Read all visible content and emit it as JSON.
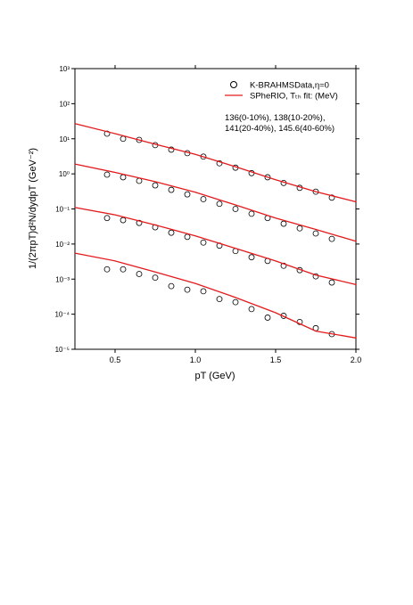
{
  "chart_data": {
    "type": "line",
    "log_y": true,
    "x_label": "pT (GeV)",
    "y_label": "1/(2πpT)d²N/dydpT (GeV⁻²)",
    "xlim": [
      0.25,
      2.0
    ],
    "xticks": [
      0.5,
      {
        "value": 1.0,
        "label": "1.0"
      },
      1.5,
      {
        "value": 2.0,
        "label": "2.0"
      }
    ],
    "ylim": [
      1e-05,
      1000
    ],
    "yticks": [
      {
        "value": 1e-05,
        "label": "10⁻⁵"
      },
      {
        "value": 0.0001,
        "label": "10⁻⁴"
      },
      {
        "value": 0.001,
        "label": "10⁻³"
      },
      {
        "value": 0.01,
        "label": "10⁻²"
      },
      {
        "value": 0.1,
        "label": "10⁻¹"
      },
      {
        "value": 1,
        "label": "10⁰"
      },
      {
        "value": 10,
        "label": "10¹"
      },
      {
        "value": 100,
        "label": "10²"
      },
      {
        "value": 1000,
        "label": "10³"
      }
    ],
    "annotations": [
      "136(0-10%), 138(10-20%),",
      "141(20-40%), 145.6(40-60%)"
    ],
    "series": [
      {
        "name": "K-BRAHMSData,η=0",
        "style": "markers",
        "color": "#000000",
        "x": [
          0.45,
          0.55,
          0.65,
          0.75,
          0.85,
          0.95,
          1.05,
          1.15,
          1.25,
          1.35,
          1.45,
          1.55,
          1.65,
          1.75,
          1.85
        ],
        "values": [
          14,
          10,
          9.3,
          6.6,
          4.9,
          3.9,
          3.1,
          2.0,
          1.5,
          1.05,
          0.8,
          0.55,
          0.4,
          0.31,
          0.21
        ]
      },
      {
        "style": "markers",
        "color": "#000000",
        "x": [
          0.45,
          0.55,
          0.65,
          0.75,
          0.85,
          0.95,
          1.05,
          1.15,
          1.25,
          1.35,
          1.45,
          1.55,
          1.65,
          1.75,
          1.85
        ],
        "values": [
          0.95,
          0.8,
          0.63,
          0.47,
          0.35,
          0.26,
          0.19,
          0.14,
          0.1,
          0.073,
          0.055,
          0.038,
          0.028,
          0.02,
          0.014
        ]
      },
      {
        "style": "markers",
        "color": "#000000",
        "x": [
          0.45,
          0.55,
          0.65,
          0.75,
          0.85,
          0.95,
          1.05,
          1.15,
          1.25,
          1.35,
          1.45,
          1.55,
          1.65,
          1.75,
          1.85
        ],
        "values": [
          0.055,
          0.048,
          0.04,
          0.03,
          0.021,
          0.016,
          0.011,
          0.009,
          0.0063,
          0.0042,
          0.0033,
          0.0024,
          0.0018,
          0.0012,
          0.0008
        ]
      },
      {
        "style": "markers",
        "color": "#000000",
        "x": [
          0.45,
          0.55,
          0.65,
          0.75,
          0.85,
          0.95,
          1.05,
          1.15,
          1.25,
          1.35,
          1.45,
          1.55,
          1.65,
          1.75,
          1.85
        ],
        "values": [
          0.0019,
          0.0019,
          0.0014,
          0.0011,
          0.00063,
          0.0005,
          0.00045,
          0.00027,
          0.00022,
          0.00014,
          8e-05,
          9e-05,
          6e-05,
          4e-05,
          2.7e-05
        ]
      },
      {
        "name": "SPheRIO, Tₜₕ fit: (MeV)",
        "style": "line",
        "color": "#e41a1c",
        "x": [
          0.25,
          0.5,
          0.75,
          1.0,
          1.25,
          1.5,
          1.75,
          2.0
        ],
        "values": [
          27,
          14,
          7,
          3.6,
          1.6,
          0.68,
          0.31,
          0.16
        ]
      },
      {
        "style": "line",
        "color": "#e41a1c",
        "x": [
          0.25,
          0.5,
          0.75,
          1.0,
          1.25,
          1.5,
          1.75,
          2.0
        ],
        "values": [
          1.9,
          1.1,
          0.6,
          0.3,
          0.13,
          0.055,
          0.026,
          0.012
        ]
      },
      {
        "style": "line",
        "color": "#e41a1c",
        "x": [
          0.25,
          0.5,
          0.75,
          1.0,
          1.25,
          1.5,
          1.75,
          2.0
        ],
        "values": [
          0.11,
          0.068,
          0.035,
          0.017,
          0.0075,
          0.0033,
          0.0013,
          0.0007
        ]
      },
      {
        "style": "line",
        "color": "#e41a1c",
        "x": [
          0.25,
          0.5,
          0.75,
          1.0,
          1.25,
          1.5,
          1.75,
          2.0
        ],
        "values": [
          0.0055,
          0.0033,
          0.0016,
          0.00075,
          0.0003,
          0.00011,
          3.3e-05,
          2.1e-05
        ]
      }
    ]
  }
}
